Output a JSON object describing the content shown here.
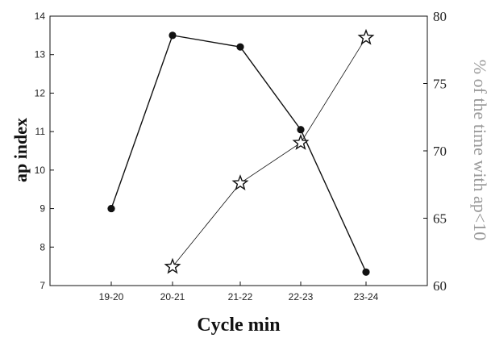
{
  "chart_data": {
    "type": "line",
    "categories": [
      "19-20",
      "20-21",
      "21-22",
      "22-23",
      "23-24"
    ],
    "xlabel": "Cycle min",
    "ylabel": "ap index",
    "ylabel_right": "% of the time with ap<10",
    "ylim": [
      7,
      14
    ],
    "ylim_right": [
      60,
      80
    ],
    "yticks": [
      "7",
      "8",
      "9",
      "10",
      "11",
      "12",
      "13",
      "14"
    ],
    "yticks_right": [
      "60",
      "65",
      "70",
      "75",
      "80"
    ],
    "grid": false,
    "series": [
      {
        "axis": "left",
        "marker": "circle",
        "color": "#111111",
        "x": [
          "19-20",
          "20-21",
          "21-22",
          "22-23",
          "23-24"
        ],
        "values": [
          9.0,
          13.5,
          13.2,
          11.05,
          7.35
        ]
      },
      {
        "axis": "right",
        "marker": "star",
        "color": "#111111",
        "x": [
          "20-21",
          "21-22",
          "22-23",
          "23-24"
        ],
        "values": [
          61.4,
          67.6,
          70.6,
          78.4
        ]
      }
    ]
  }
}
